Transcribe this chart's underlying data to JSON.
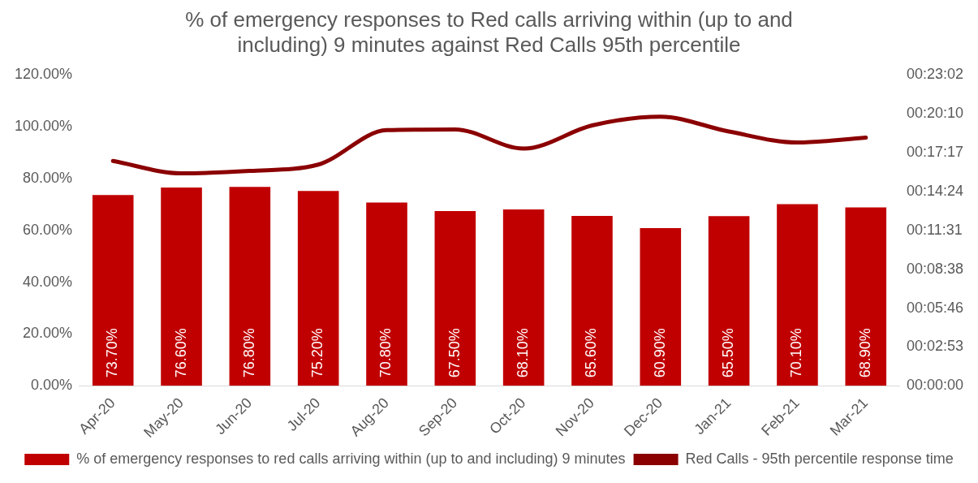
{
  "chart_data": {
    "type": "bar",
    "title": "% of emergency responses to Red calls arriving within (up to and including) 9 minutes against Red Calls 95th percentile",
    "categories": [
      "Apr-20",
      "May-20",
      "Jun-20",
      "Jul-20",
      "Aug-20",
      "Sep-20",
      "Oct-20",
      "Nov-20",
      "Dec-20",
      "Jan-21",
      "Feb-21",
      "Mar-21"
    ],
    "series": [
      {
        "name": "% of emergency responses to red calls arriving within (up to and including) 9 minutes",
        "color": "#c00000",
        "values": [
          73.7,
          76.6,
          76.8,
          75.2,
          70.8,
          67.5,
          68.1,
          65.6,
          60.9,
          65.5,
          70.1,
          68.9
        ],
        "value_labels": [
          "73.70%",
          "76.60%",
          "76.80%",
          "75.20%",
          "70.80%",
          "67.50%",
          "68.10%",
          "65.60%",
          "60.90%",
          "65.50%",
          "70.10%",
          "68.90%"
        ]
      },
      {
        "name": "Red Calls - 95th percentile response time",
        "type": "line",
        "axis": "y2",
        "color": "#8b0000",
        "values": [
          1000,
          945,
          956,
          984,
          1137,
          1140,
          1055,
          1158,
          1197,
          1131,
          1082,
          1104
        ]
      }
    ],
    "ylim": [
      0,
      120
    ],
    "yticks": [
      {
        "value": 0,
        "label": "0.00%"
      },
      {
        "value": 20,
        "label": "20.00%"
      },
      {
        "value": 40,
        "label": "40.00%"
      },
      {
        "value": 60,
        "label": "60.00%"
      },
      {
        "value": 80,
        "label": "80.00%"
      },
      {
        "value": 100,
        "label": "100.00%"
      },
      {
        "value": 120,
        "label": "120.00%"
      }
    ],
    "y2lim": [
      0,
      1382.4
    ],
    "y2ticks": [
      {
        "value": 0,
        "label": "00:00:00"
      },
      {
        "value": 172.8,
        "label": "00:02:53"
      },
      {
        "value": 345.6,
        "label": "00:05:46"
      },
      {
        "value": 518.4,
        "label": "00:08:38"
      },
      {
        "value": 691.2,
        "label": "00:11:31"
      },
      {
        "value": 864,
        "label": "00:14:24"
      },
      {
        "value": 1036.8,
        "label": "00:17:17"
      },
      {
        "value": 1209.6,
        "label": "00:20:10"
      },
      {
        "value": 1382.4,
        "label": "00:23:02"
      }
    ],
    "legend": "bottom",
    "marker": "none"
  }
}
